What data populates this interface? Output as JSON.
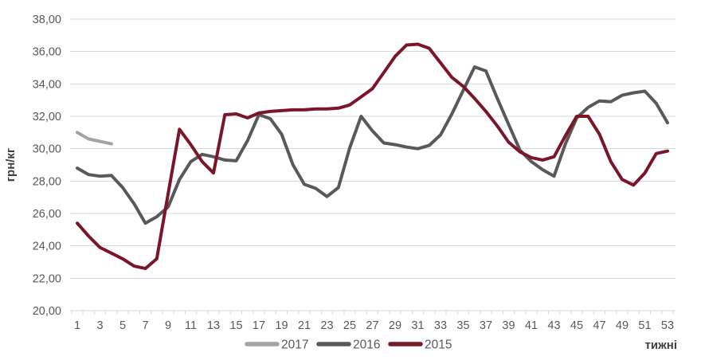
{
  "chart": {
    "background": "#ffffff",
    "grid_color": "#d9d9d9",
    "tick_label_color": "#595959",
    "axis_title_color": "#404040",
    "y_axis": {
      "title": "грн/кг",
      "tick_labels": [
        "38,00",
        "36,00",
        "34,00",
        "32,00",
        "30,00",
        "28,00",
        "26,00",
        "24,00",
        "22,00",
        "20,00"
      ]
    },
    "x_axis": {
      "title": "тижні",
      "tick_labels": [
        "1",
        "3",
        "5",
        "7",
        "9",
        "11",
        "13",
        "15",
        "17",
        "19",
        "21",
        "23",
        "25",
        "27",
        "29",
        "31",
        "33",
        "35",
        "37",
        "39",
        "41",
        "43",
        "45",
        "47",
        "49",
        "51",
        "53"
      ]
    },
    "legend": [
      {
        "label": "2017",
        "color": "#a3a3a3"
      },
      {
        "label": "2016",
        "color": "#595959"
      },
      {
        "label": "2015",
        "color": "#7b1629"
      }
    ]
  },
  "chart_data": {
    "type": "line",
    "xlabel": "тижні",
    "ylabel": "грн/кг",
    "ylim": [
      20,
      38
    ],
    "ytick_step": 2,
    "xlim": [
      1,
      53
    ],
    "grid": true,
    "legend_position": "bottom",
    "x": [
      1,
      2,
      3,
      4,
      5,
      6,
      7,
      8,
      9,
      10,
      11,
      12,
      13,
      14,
      15,
      16,
      17,
      18,
      19,
      20,
      21,
      22,
      23,
      24,
      25,
      26,
      27,
      28,
      29,
      30,
      31,
      32,
      33,
      34,
      35,
      36,
      37,
      38,
      39,
      40,
      41,
      42,
      43,
      44,
      45,
      46,
      47,
      48,
      49,
      50,
      51,
      52,
      53
    ],
    "series": [
      {
        "name": "2017",
        "color": "#a3a3a3",
        "values": [
          31.0,
          30.6,
          30.45,
          30.3
        ]
      },
      {
        "name": "2016",
        "color": "#595959",
        "values": [
          28.8,
          28.4,
          28.3,
          28.35,
          27.6,
          26.6,
          25.4,
          25.8,
          26.4,
          28.1,
          29.2,
          29.65,
          29.5,
          29.3,
          29.25,
          30.5,
          32.1,
          31.85,
          30.9,
          29.0,
          27.8,
          27.55,
          27.05,
          27.6,
          30.05,
          32.0,
          31.1,
          30.35,
          30.25,
          30.1,
          30.0,
          30.2,
          30.85,
          32.15,
          33.6,
          35.05,
          34.8,
          33.1,
          31.5,
          29.9,
          29.2,
          28.7,
          28.3,
          30.3,
          31.9,
          32.55,
          32.95,
          32.9,
          33.3,
          33.45,
          33.55,
          32.8,
          31.6
        ]
      },
      {
        "name": "2015",
        "color": "#7b1629",
        "values": [
          25.4,
          24.6,
          23.9,
          23.55,
          23.2,
          22.75,
          22.6,
          23.2,
          27.2,
          31.2,
          30.25,
          29.2,
          28.5,
          32.1,
          32.15,
          31.9,
          32.2,
          32.3,
          32.35,
          32.4,
          32.4,
          32.45,
          32.45,
          32.5,
          32.7,
          33.2,
          33.7,
          34.7,
          35.7,
          36.4,
          36.45,
          36.2,
          35.3,
          34.4,
          33.85,
          33.1,
          32.3,
          31.4,
          30.4,
          29.8,
          29.45,
          29.3,
          29.5,
          30.8,
          32.0,
          32.0,
          30.9,
          29.2,
          28.1,
          27.75,
          28.5,
          29.7,
          29.85
        ]
      }
    ]
  }
}
